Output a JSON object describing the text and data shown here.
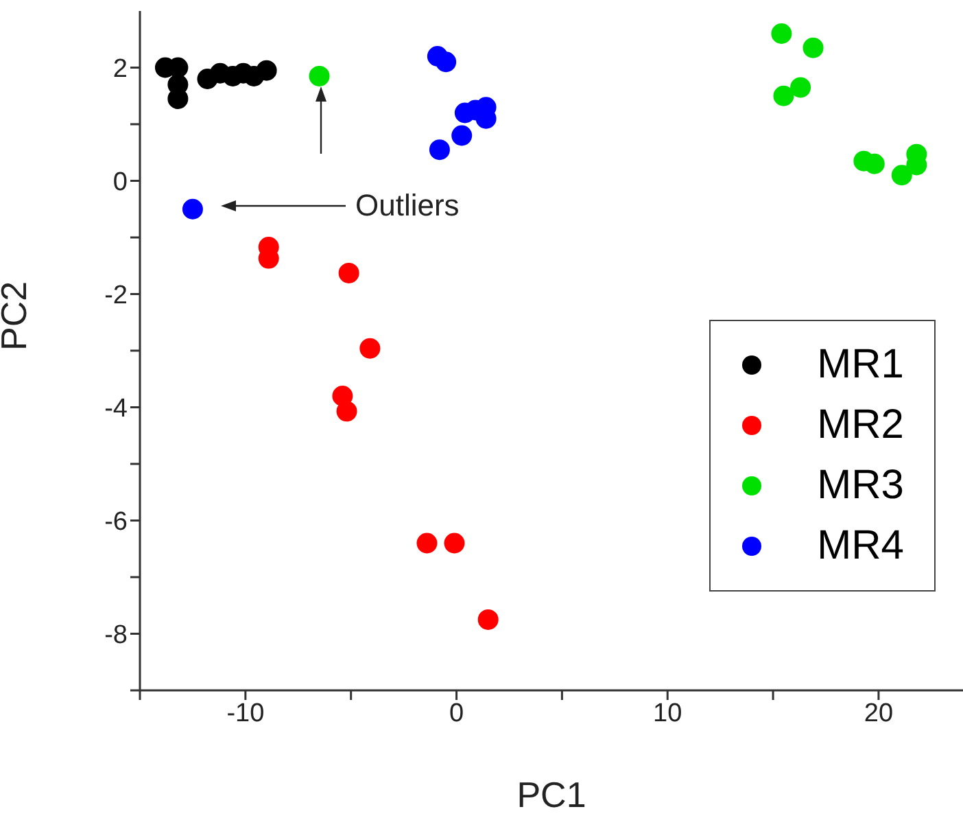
{
  "chart_data": {
    "type": "scatter",
    "xlabel": "PC1",
    "ylabel": "PC2",
    "xlim": [
      -15,
      24
    ],
    "xticks": [
      {
        "value": -15,
        "label": null
      },
      -10,
      {
        "value": -5,
        "label": null
      },
      0,
      {
        "value": 5,
        "label": null
      },
      10,
      {
        "value": 15,
        "label": null
      },
      20
    ],
    "ylim": [
      -9,
      3
    ],
    "yticks": [
      {
        "value": -9,
        "label": null
      },
      -8,
      {
        "value": -7,
        "label": null
      },
      -6,
      {
        "value": -5,
        "label": null
      },
      -4,
      {
        "value": -3,
        "label": null
      },
      -2,
      {
        "value": -1,
        "label": null
      },
      0,
      {
        "value": 1,
        "label": null
      },
      2
    ],
    "grid": false,
    "legend": "bottom right",
    "marker": "circle",
    "annotations": [
      "Outliers"
    ],
    "series": [
      {
        "name": "MR1",
        "color": "#000000",
        "x": [
          -13.8,
          -13.2,
          -13.2,
          -13.2,
          -11.8,
          -11.2,
          -10.6,
          -10.1,
          -9.6,
          -9.0
        ],
        "values": [
          2.0,
          2.0,
          1.7,
          1.45,
          1.8,
          1.9,
          1.85,
          1.9,
          1.85,
          1.95
        ]
      },
      {
        "name": "MR2",
        "color": "#ff0000",
        "x": [
          -8.9,
          -8.9,
          -5.1,
          -4.1,
          -5.4,
          -5.2,
          -1.4,
          -0.1,
          1.5
        ],
        "values": [
          -1.17,
          -1.37,
          -1.63,
          -2.96,
          -3.8,
          -4.07,
          -6.4,
          -6.4,
          -7.75
        ]
      },
      {
        "name": "MR3",
        "color": "#00e000",
        "x": [
          -6.5,
          15.4,
          16.9,
          15.5,
          16.3,
          19.3,
          19.8,
          21.1,
          21.8,
          21.8
        ],
        "values": [
          1.85,
          2.6,
          2.35,
          1.5,
          1.65,
          0.35,
          0.3,
          0.1,
          0.47,
          0.28
        ]
      },
      {
        "name": "MR4",
        "color": "#0000ff",
        "x": [
          -12.5,
          -0.9,
          -0.5,
          -0.8,
          0.25,
          0.4,
          0.9,
          1.4,
          1.4
        ],
        "values": [
          -0.5,
          2.2,
          2.1,
          0.55,
          0.8,
          1.2,
          1.25,
          1.3,
          1.1
        ]
      }
    ]
  }
}
